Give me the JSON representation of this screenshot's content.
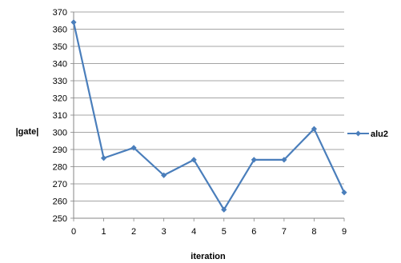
{
  "chart_data": {
    "type": "line",
    "title": "",
    "xlabel": "iteration",
    "ylabel": "|gate|",
    "x": [
      0,
      1,
      2,
      3,
      4,
      5,
      6,
      7,
      8,
      9
    ],
    "xticks": [
      "0",
      "1",
      "2",
      "3",
      "4",
      "5",
      "6",
      "7",
      "8",
      "9"
    ],
    "yticks": [
      "250",
      "260",
      "270",
      "280",
      "290",
      "300",
      "310",
      "320",
      "330",
      "340",
      "350",
      "360",
      "370"
    ],
    "ylim": [
      250,
      370
    ],
    "grid": true,
    "legend": "right",
    "series": [
      {
        "name": "alu2",
        "color": "#4a7ebb",
        "marker": "diamond",
        "values": [
          364,
          285,
          291,
          275,
          284,
          255,
          284,
          284,
          302,
          265
        ]
      }
    ]
  }
}
